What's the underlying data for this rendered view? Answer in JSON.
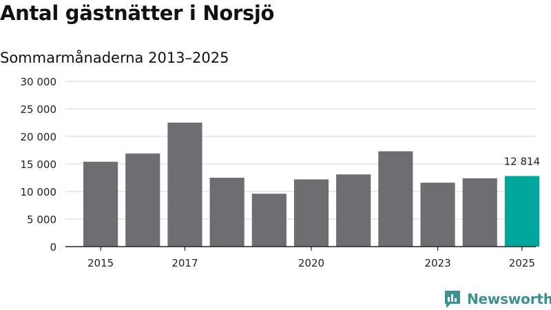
{
  "header": {
    "title": "Antal gästnätter i Norsjö",
    "subtitle": "Sommarmånaderna 2013–2025"
  },
  "brand": {
    "name": "Newsworthy",
    "logo_icon": "newsworthy-chart-bubble-icon",
    "color": "#3f8f8f"
  },
  "chart_data": {
    "type": "bar",
    "categories": [
      "2015",
      "2016",
      "2017",
      "2018",
      "2019",
      "2020",
      "2021",
      "2022",
      "2023",
      "2024",
      "2025"
    ],
    "x_tick_labels": [
      "2015",
      "2017",
      "2020",
      "2023",
      "2025"
    ],
    "values": [
      15400,
      16900,
      22500,
      12500,
      9600,
      12200,
      13100,
      17300,
      11600,
      12400,
      12814
    ],
    "highlight_index": 10,
    "highlight_label": "12 814",
    "ylim": [
      0,
      30000
    ],
    "y_ticks": [
      0,
      5000,
      10000,
      15000,
      20000,
      25000,
      30000
    ],
    "y_tick_labels": [
      "0",
      "5 000",
      "10 000",
      "15 000",
      "20 000",
      "25 000",
      "30 000"
    ],
    "grid": true,
    "colors": {
      "bar": "#6e6d72",
      "highlight": "#00a79a",
      "grid": "#dddddd",
      "axis": "#222222"
    }
  }
}
